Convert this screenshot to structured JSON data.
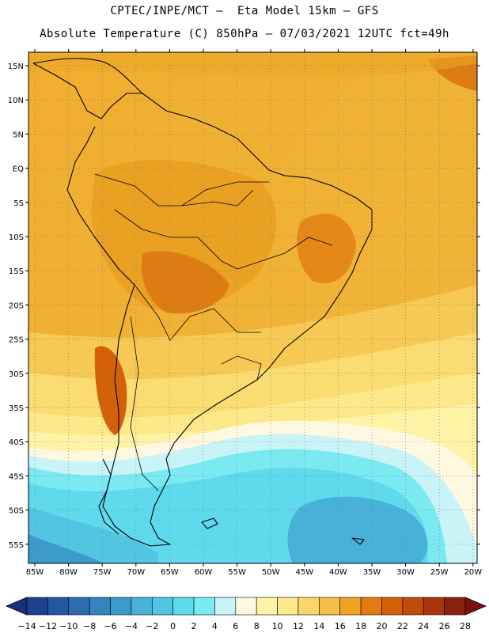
{
  "header": {
    "line1": "CPTEC/INPE/MCT –  Eta Model 15km – GFS",
    "line2": "Absolute Temperature (C) 850hPa – 07/03/2021 12UTC fct=49h"
  },
  "axes": {
    "lat_labels": [
      "15N",
      "10N",
      "5N",
      "EQ",
      "5S",
      "10S",
      "15S",
      "20S",
      "25S",
      "30S",
      "35S",
      "40S",
      "45S",
      "50S",
      "55S"
    ],
    "lon_labels": [
      "85W",
      "80W",
      "75W",
      "70W",
      "65W",
      "60W",
      "55W",
      "50W",
      "45W",
      "40W",
      "35W",
      "30W",
      "25W",
      "20W"
    ]
  },
  "colorbar": {
    "labels": [
      "-14",
      "-12",
      "-10",
      "-8",
      "-6",
      "-4",
      "-2",
      "0",
      "2",
      "4",
      "6",
      "8",
      "10",
      "12",
      "14",
      "16",
      "18",
      "20",
      "22",
      "24",
      "26",
      "28"
    ],
    "colors": [
      "#1c3f8e",
      "#2457a0",
      "#2b6db0",
      "#3384bf",
      "#3c9bcb",
      "#47b1d8",
      "#52c5e2",
      "#5fd9ec",
      "#7ae9f2",
      "#c8f4f8",
      "#fff8e0",
      "#fff3a6",
      "#fde88a",
      "#fad56a",
      "#f3bf48",
      "#eea322",
      "#e27c12",
      "#d5600a",
      "#c04a08",
      "#a8360a",
      "#8b2210"
    ],
    "under_color": "#17307a",
    "over_color": "#7a1010"
  }
}
